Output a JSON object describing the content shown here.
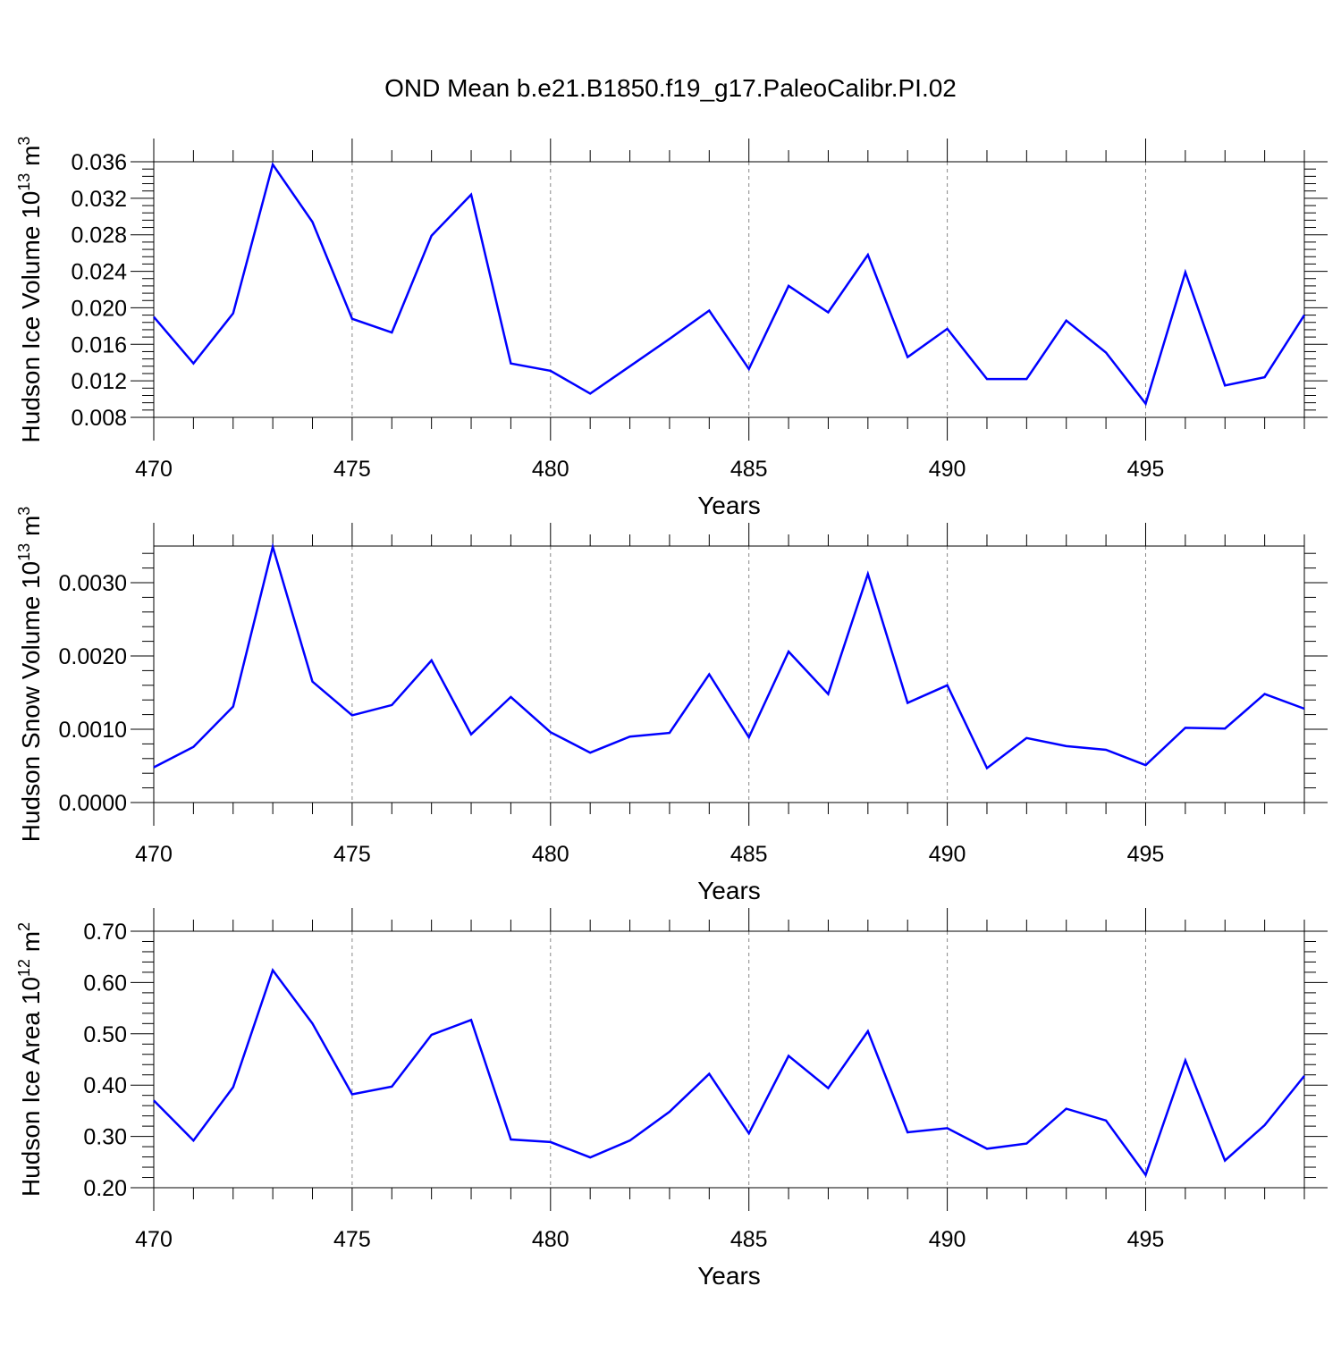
{
  "title": "OND Mean b.e21.B1850.f19_g17.PaleoCalibr.PI.02",
  "line_color": "#0000ff",
  "chart_data": [
    {
      "type": "line",
      "xlabel": "Years",
      "ylabel": "Hudson Ice Volume 10",
      "ylabel_sup": "13",
      "ylabel_unit": " m",
      "ylabel_unit_sup": "3",
      "xlim": [
        470,
        499
      ],
      "ylim": [
        0.008,
        0.036
      ],
      "x_ticks": [
        "470",
        "475",
        "480",
        "485",
        "490",
        "495"
      ],
      "y_ticks": [
        "0.008",
        "0.012",
        "0.016",
        "0.020",
        "0.024",
        "0.028",
        "0.032",
        "0.036"
      ],
      "grid": "vertical dashed at major x ticks",
      "x": [
        470,
        471,
        472,
        473,
        474,
        475,
        476,
        477,
        478,
        479,
        480,
        481,
        482,
        483,
        484,
        485,
        486,
        487,
        488,
        489,
        490,
        491,
        492,
        493,
        494,
        495,
        496,
        497,
        498,
        499
      ],
      "values": [
        0.019,
        0.0139,
        0.0194,
        0.0357,
        0.0294,
        0.0188,
        0.0173,
        0.0279,
        0.0324,
        0.0139,
        0.0131,
        0.0106,
        0.0136,
        0.0166,
        0.0197,
        0.0133,
        0.0224,
        0.0195,
        0.0258,
        0.0146,
        0.0177,
        0.0122,
        0.0122,
        0.0186,
        0.0151,
        0.0095,
        0.0239,
        0.0115,
        0.0124,
        0.0192
      ]
    },
    {
      "type": "line",
      "xlabel": "Years",
      "ylabel": "Hudson Snow Volume 10",
      "ylabel_sup": "13",
      "ylabel_unit": " m",
      "ylabel_unit_sup": "3",
      "xlim": [
        470,
        499
      ],
      "ylim": [
        0.0,
        0.0035
      ],
      "x_ticks": [
        "470",
        "475",
        "480",
        "485",
        "490",
        "495"
      ],
      "y_ticks": [
        "0.0000",
        "0.0010",
        "0.0020",
        "0.0030"
      ],
      "grid": "vertical dashed at major x ticks",
      "x": [
        470,
        471,
        472,
        473,
        474,
        475,
        476,
        477,
        478,
        479,
        480,
        481,
        482,
        483,
        484,
        485,
        486,
        487,
        488,
        489,
        490,
        491,
        492,
        493,
        494,
        495,
        496,
        497,
        498,
        499
      ],
      "values": [
        0.00048,
        0.00076,
        0.00131,
        0.00349,
        0.00165,
        0.00119,
        0.00133,
        0.00194,
        0.00093,
        0.00144,
        0.00096,
        0.00068,
        0.0009,
        0.00095,
        0.00175,
        0.00089,
        0.00206,
        0.00148,
        0.00312,
        0.00136,
        0.0016,
        0.00047,
        0.00088,
        0.00077,
        0.00072,
        0.00051,
        0.00102,
        0.00101,
        0.00148,
        0.00128
      ]
    },
    {
      "type": "line",
      "xlabel": "Years",
      "ylabel": "Hudson Ice Area 10",
      "ylabel_sup": "12",
      "ylabel_unit": " m",
      "ylabel_unit_sup": "2",
      "xlim": [
        470,
        499
      ],
      "ylim": [
        0.2,
        0.7
      ],
      "x_ticks": [
        "470",
        "475",
        "480",
        "485",
        "490",
        "495"
      ],
      "y_ticks": [
        "0.20",
        "0.30",
        "0.40",
        "0.50",
        "0.60",
        "0.70"
      ],
      "grid": "vertical dashed at major x ticks",
      "x": [
        470,
        471,
        472,
        473,
        474,
        475,
        476,
        477,
        478,
        479,
        480,
        481,
        482,
        483,
        484,
        485,
        486,
        487,
        488,
        489,
        490,
        491,
        492,
        493,
        494,
        495,
        496,
        497,
        498,
        499
      ],
      "values": [
        0.37,
        0.292,
        0.396,
        0.624,
        0.52,
        0.382,
        0.397,
        0.498,
        0.527,
        0.294,
        0.289,
        0.259,
        0.292,
        0.348,
        0.422,
        0.306,
        0.457,
        0.394,
        0.505,
        0.308,
        0.316,
        0.276,
        0.286,
        0.354,
        0.331,
        0.225,
        0.448,
        0.253,
        0.322,
        0.418
      ]
    }
  ]
}
